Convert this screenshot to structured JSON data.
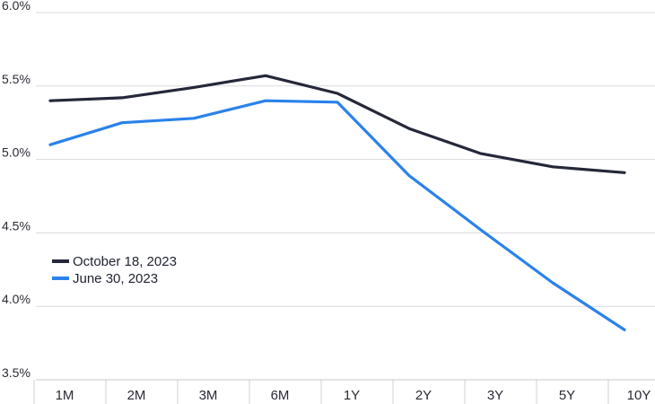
{
  "chart_data": {
    "type": "line",
    "title": "",
    "xlabel": "",
    "ylabel": "",
    "categories": [
      "1M",
      "2M",
      "3M",
      "6M",
      "1Y",
      "2Y",
      "3Y",
      "5Y",
      "10Y"
    ],
    "ylim": [
      3.5,
      6.0
    ],
    "yticks": [
      "6.0%",
      "5.5%",
      "5.0%",
      "4.5%",
      "4.0%",
      "3.5%"
    ],
    "ytick_values": [
      6.0,
      5.5,
      5.0,
      4.5,
      4.0,
      3.5
    ],
    "grid": true,
    "legend_position": "left",
    "series": [
      {
        "name": "October 18, 2023",
        "color": "#25283a",
        "values": [
          5.4,
          5.42,
          5.49,
          5.57,
          5.45,
          5.21,
          5.04,
          4.95,
          4.91
        ]
      },
      {
        "name": "June 30, 2023",
        "color": "#2a82ea",
        "values": [
          5.1,
          5.25,
          5.28,
          5.4,
          5.39,
          4.89,
          4.52,
          4.16,
          3.84
        ]
      }
    ]
  }
}
